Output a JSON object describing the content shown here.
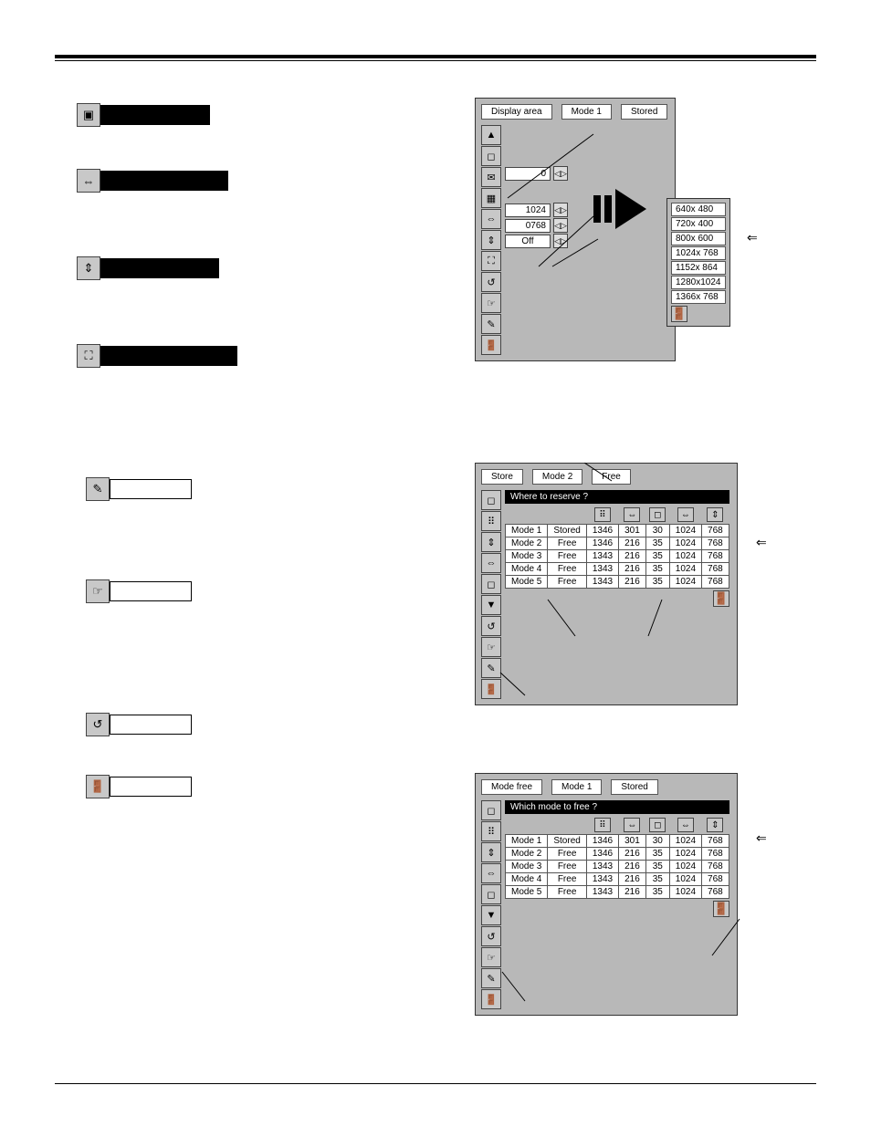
{
  "display_area_dialog": {
    "title": "Display area",
    "mode_label": "Mode 1",
    "status_label": "Stored",
    "fields": {
      "value0": "0",
      "h": "1024",
      "v": "0768",
      "fullscreen": "Off"
    },
    "resolutions": [
      "640x 480",
      "720x 400",
      "800x 600",
      "1024x 768",
      "1152x 864",
      "1280x1024",
      "1366x 768"
    ],
    "selected_index": 2
  },
  "store_dialog": {
    "title": "Store",
    "mode_label": "Mode 2",
    "status_label": "Free",
    "prompt": "Where to reserve ?",
    "rows": [
      {
        "mode": "Mode 1",
        "status": "Stored",
        "a": "1346",
        "b": "301",
        "c": "30",
        "d": "1024",
        "e": "768"
      },
      {
        "mode": "Mode 2",
        "status": "Free",
        "a": "1346",
        "b": "216",
        "c": "35",
        "d": "1024",
        "e": "768"
      },
      {
        "mode": "Mode 3",
        "status": "Free",
        "a": "1343",
        "b": "216",
        "c": "35",
        "d": "1024",
        "e": "768"
      },
      {
        "mode": "Mode 4",
        "status": "Free",
        "a": "1343",
        "b": "216",
        "c": "35",
        "d": "1024",
        "e": "768"
      },
      {
        "mode": "Mode 5",
        "status": "Free",
        "a": "1343",
        "b": "216",
        "c": "35",
        "d": "1024",
        "e": "768"
      }
    ],
    "selected_row": 1
  },
  "modefree_dialog": {
    "title": "Mode free",
    "mode_label": "Mode 1",
    "status_label": "Stored",
    "prompt": "Which mode to free ?",
    "rows": [
      {
        "mode": "Mode 1",
        "status": "Stored",
        "a": "1346",
        "b": "301",
        "c": "30",
        "d": "1024",
        "e": "768"
      },
      {
        "mode": "Mode 2",
        "status": "Free",
        "a": "1346",
        "b": "216",
        "c": "35",
        "d": "1024",
        "e": "768"
      },
      {
        "mode": "Mode 3",
        "status": "Free",
        "a": "1343",
        "b": "216",
        "c": "35",
        "d": "1024",
        "e": "768"
      },
      {
        "mode": "Mode 4",
        "status": "Free",
        "a": "1343",
        "b": "216",
        "c": "35",
        "d": "1024",
        "e": "768"
      },
      {
        "mode": "Mode 5",
        "status": "Free",
        "a": "1343",
        "b": "216",
        "c": "35",
        "d": "1024",
        "e": "768"
      }
    ],
    "selected_row": 0
  },
  "left_blackbar_widths": [
    120,
    140,
    130,
    150
  ],
  "colors": {
    "panel_bg": "#b8b8b8",
    "field_bg": "#ffffff",
    "border": "#444444",
    "black": "#000000"
  }
}
